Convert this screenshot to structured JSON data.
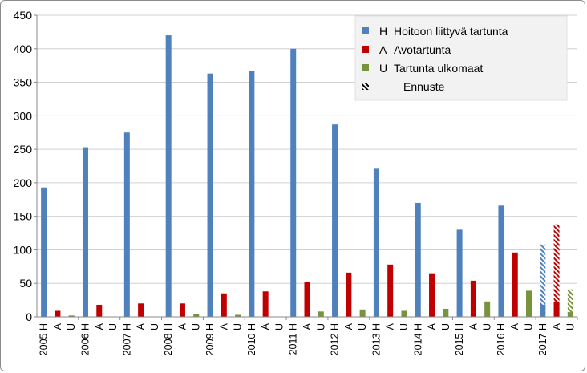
{
  "chart_data": {
    "type": "bar",
    "title": "",
    "xlabel": "",
    "ylabel": "",
    "ylim": [
      0,
      450
    ],
    "yticks": [
      0,
      50,
      100,
      150,
      200,
      250,
      300,
      350,
      400,
      450
    ],
    "grid": true,
    "legend_position": "top-right",
    "years": [
      "2005",
      "2006",
      "2007",
      "2008",
      "2009",
      "2010",
      "2011",
      "2012",
      "2013",
      "2014",
      "2015",
      "2016",
      "2017"
    ],
    "sub_labels": [
      "H",
      "A",
      "U"
    ],
    "series": [
      {
        "code": "H",
        "name": "Hoitoon liittyvä tartunta",
        "color": "#4f81bd",
        "values": [
          193,
          253,
          275,
          420,
          363,
          367,
          400,
          287,
          221,
          170,
          130,
          166,
          18
        ]
      },
      {
        "code": "A",
        "name": "Avotartunta",
        "color": "#c00000",
        "values": [
          9,
          18,
          20,
          20,
          35,
          38,
          52,
          66,
          78,
          65,
          54,
          96,
          23
        ]
      },
      {
        "code": "U",
        "name": "Tartunta ulkomaat",
        "color": "#77933c",
        "values": [
          2,
          0,
          0,
          4,
          3,
          0,
          8,
          11,
          9,
          12,
          23,
          39,
          7
        ]
      }
    ],
    "forecast": {
      "legend_label": "Ennuste",
      "year": "2017",
      "values": {
        "H": 108,
        "A": 138,
        "U": 41
      }
    }
  }
}
